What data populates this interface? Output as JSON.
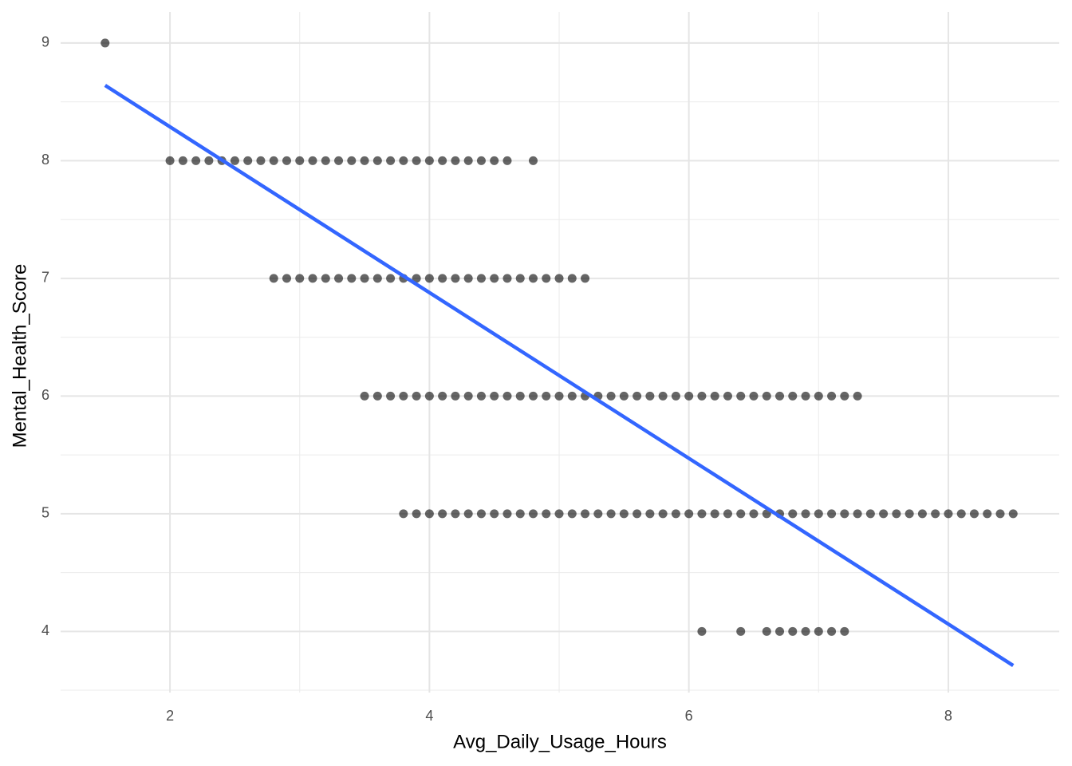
{
  "chart_data": {
    "type": "scatter",
    "x_label": "Avg_Daily_Usage_Hours",
    "y_label": "Mental_Health_Score",
    "color": "#000000",
    "xlim": [
      1.157,
      8.855
    ],
    "ylim": [
      3.48,
      9.264
    ],
    "xticks": [
      2,
      4,
      6,
      8
    ],
    "yticks": [
      4,
      5,
      6,
      7,
      8,
      9
    ],
    "x_minor_grid": [
      3,
      5,
      7
    ],
    "y_minor_grid": [
      3.5,
      4.5,
      5.5,
      6.5,
      7.5,
      8.5
    ],
    "grid": true,
    "x": [
      1.5,
      2.0,
      2.1,
      2.2,
      2.3,
      2.4,
      2.5,
      2.6,
      2.7,
      2.8,
      2.9,
      3.0,
      3.1,
      3.2,
      3.3,
      3.4,
      3.5,
      3.6,
      3.7,
      3.8,
      3.9,
      4.0,
      4.1,
      4.2,
      4.3,
      4.4,
      4.5,
      4.6,
      4.8,
      2.8,
      2.9,
      3.0,
      3.1,
      3.2,
      3.3,
      3.4,
      3.5,
      3.6,
      3.7,
      3.8,
      3.9,
      4.0,
      4.1,
      4.2,
      4.3,
      4.4,
      4.5,
      4.6,
      4.7,
      4.8,
      4.9,
      5.0,
      5.1,
      5.2,
      3.5,
      3.6,
      3.7,
      3.8,
      3.9,
      4.0,
      4.1,
      4.2,
      4.3,
      4.4,
      4.5,
      4.6,
      4.7,
      4.8,
      4.9,
      5.0,
      5.1,
      5.2,
      5.3,
      5.4,
      5.5,
      5.6,
      5.7,
      5.8,
      5.9,
      6.0,
      6.1,
      6.2,
      6.3,
      6.4,
      6.5,
      6.6,
      6.7,
      6.8,
      6.9,
      7.0,
      7.1,
      7.2,
      7.3,
      3.8,
      3.9,
      4.0,
      4.1,
      4.2,
      4.3,
      4.4,
      4.5,
      4.6,
      4.7,
      4.8,
      4.9,
      5.0,
      5.1,
      5.2,
      5.3,
      5.4,
      5.5,
      5.6,
      5.7,
      5.8,
      5.9,
      6.0,
      6.1,
      6.2,
      6.3,
      6.4,
      6.5,
      6.6,
      6.7,
      6.8,
      6.9,
      7.0,
      7.1,
      7.2,
      7.3,
      7.4,
      7.5,
      7.6,
      7.7,
      7.8,
      7.9,
      8.0,
      8.1,
      8.2,
      8.3,
      8.4,
      8.5,
      6.1,
      6.4,
      6.6,
      6.7,
      6.8,
      6.9,
      7.0,
      7.1,
      7.2
    ],
    "values": [
      9,
      8,
      8,
      8,
      8,
      8,
      8,
      8,
      8,
      8,
      8,
      8,
      8,
      8,
      8,
      8,
      8,
      8,
      8,
      8,
      8,
      8,
      8,
      8,
      8,
      8,
      8,
      8,
      8,
      7,
      7,
      7,
      7,
      7,
      7,
      7,
      7,
      7,
      7,
      7,
      7,
      7,
      7,
      7,
      7,
      7,
      7,
      7,
      7,
      7,
      7,
      7,
      7,
      7,
      6,
      6,
      6,
      6,
      6,
      6,
      6,
      6,
      6,
      6,
      6,
      6,
      6,
      6,
      6,
      6,
      6,
      6,
      6,
      6,
      6,
      6,
      6,
      6,
      6,
      6,
      6,
      6,
      6,
      6,
      6,
      6,
      6,
      6,
      6,
      6,
      6,
      6,
      6,
      5,
      5,
      5,
      5,
      5,
      5,
      5,
      5,
      5,
      5,
      5,
      5,
      5,
      5,
      5,
      5,
      5,
      5,
      5,
      5,
      5,
      5,
      5,
      5,
      5,
      5,
      5,
      5,
      5,
      5,
      5,
      5,
      5,
      5,
      5,
      5,
      5,
      5,
      5,
      5,
      5,
      5,
      5,
      5,
      5,
      5,
      5,
      5,
      4,
      4,
      4,
      4,
      4,
      4,
      4,
      4,
      4
    ],
    "trend": {
      "x": [
        1.5,
        8.5
      ],
      "values": [
        8.64,
        3.71
      ],
      "color": "#3366ff"
    }
  }
}
